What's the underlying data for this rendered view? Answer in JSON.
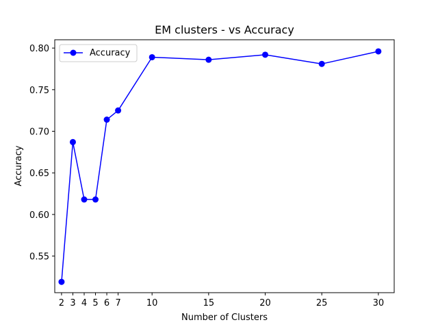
{
  "chart_data": {
    "type": "line",
    "title": "EM clusters - vs Accuracy",
    "xlabel": "Number of Clusters",
    "ylabel": "Accuracy",
    "x": [
      2,
      3,
      4,
      5,
      6,
      7,
      10,
      15,
      20,
      25,
      30
    ],
    "x_ticks": [
      "2",
      "3",
      "4",
      "5",
      "6",
      "7",
      "10",
      "15",
      "20",
      "25",
      "30"
    ],
    "xlim": [
      1.4,
      31.4
    ],
    "ylim": [
      0.506,
      0.81
    ],
    "y_ticks": [
      "0.55",
      "0.60",
      "0.65",
      "0.70",
      "0.75",
      "0.80"
    ],
    "series": [
      {
        "name": "Accuracy",
        "color": "#0000ff",
        "marker": "circle",
        "values": [
          0.519,
          0.687,
          0.618,
          0.618,
          0.714,
          0.725,
          0.789,
          0.786,
          0.792,
          0.781,
          0.796
        ]
      }
    ],
    "legend": {
      "position": "top-left",
      "entries": [
        "Accuracy"
      ]
    },
    "grid": false
  }
}
